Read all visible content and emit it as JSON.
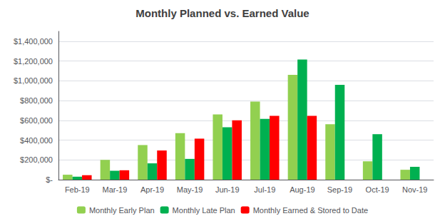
{
  "chart_data": {
    "type": "bar",
    "title": "Monthly Planned vs. Earned Value",
    "categories": [
      "Feb-19",
      "Mar-19",
      "Apr-19",
      "May-19",
      "Jun-19",
      "Jul-19",
      "Aug-19",
      "Sep-19",
      "Oct-19",
      "Nov-19"
    ],
    "series": [
      {
        "name": "Monthly Early Plan",
        "color": "#92d050",
        "values": [
          50000,
          200000,
          350000,
          470000,
          660000,
          790000,
          1060000,
          560000,
          185000,
          100000
        ]
      },
      {
        "name": "Monthly Late Plan",
        "color": "#00b050",
        "values": [
          30000,
          90000,
          165000,
          210000,
          530000,
          615000,
          1215000,
          960000,
          460000,
          130000
        ]
      },
      {
        "name": "Monthly Earned & Stored to Date",
        "color": "#ff0000",
        "values": [
          45000,
          95000,
          295000,
          415000,
          600000,
          645000,
          645000,
          0,
          0,
          0
        ]
      }
    ],
    "ylim": [
      0,
      1500000
    ],
    "yticks": [
      {
        "value": 0,
        "label": "$-"
      },
      {
        "value": 200000,
        "label": "$200,000"
      },
      {
        "value": 400000,
        "label": "$400,000"
      },
      {
        "value": 600000,
        "label": "$600,000"
      },
      {
        "value": 800000,
        "label": "$800,000"
      },
      {
        "value": 1000000,
        "label": "$1,000,000"
      },
      {
        "value": 1200000,
        "label": "$1,200,000"
      },
      {
        "value": 1400000,
        "label": "$1,400,000"
      }
    ],
    "grid": true,
    "legend": "bottom"
  }
}
